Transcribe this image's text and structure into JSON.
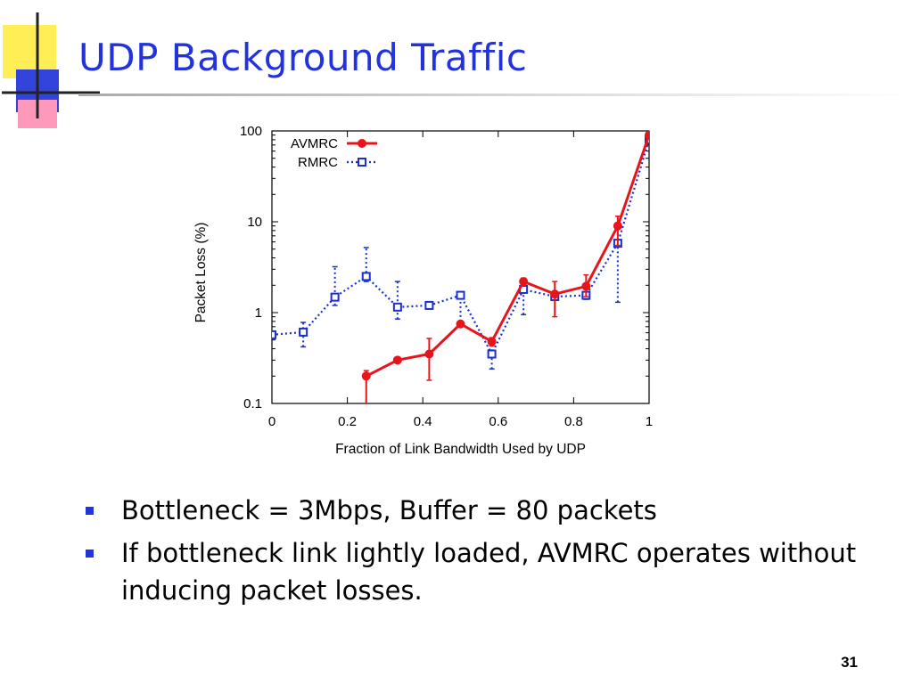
{
  "slide": {
    "title": "UDP Background Traffic",
    "bullets": [
      "Bottleneck = 3Mbps, Buffer = 80 packets",
      "If bottleneck link lightly loaded, AVMRC operates without inducing packet losses."
    ],
    "page_number": "31",
    "colors": {
      "title": "#2233dd",
      "bullet": "#2233dd",
      "deco_yellow": "#ffee55",
      "deco_blue": "#3344dd",
      "deco_pink": "#ff99bb"
    }
  },
  "chart_data": {
    "type": "line",
    "title": "",
    "xlabel": "Fraction of Link Bandwidth Used by UDP",
    "ylabel": "Packet Loss (%)",
    "xlim": [
      0,
      1
    ],
    "ylim": [
      0.1,
      100
    ],
    "yscale": "log",
    "xticks": [
      "0",
      "0.2",
      "0.4",
      "0.6",
      "0.8",
      "1"
    ],
    "yticks": [
      "0.1",
      "1",
      "10",
      "100"
    ],
    "legend_position": "top-left",
    "series": [
      {
        "name": "AVMRC",
        "color": "#e8141c",
        "style": "solid",
        "marker": "circle",
        "points": [
          {
            "x": 0.25,
            "y": 0.2,
            "err_low": 0.08,
            "err_high": 0.23
          },
          {
            "x": 0.333,
            "y": 0.3
          },
          {
            "x": 0.417,
            "y": 0.35,
            "err_low": 0.18,
            "err_high": 0.52
          },
          {
            "x": 0.5,
            "y": 0.75
          },
          {
            "x": 0.583,
            "y": 0.48,
            "err_low": 0.43,
            "err_high": 0.53
          },
          {
            "x": 0.667,
            "y": 2.2,
            "err_low": 2.0,
            "err_high": 2.4
          },
          {
            "x": 0.75,
            "y": 1.6,
            "err_low": 0.9,
            "err_high": 2.2
          },
          {
            "x": 0.833,
            "y": 1.95,
            "err_low": 1.5,
            "err_high": 2.6
          },
          {
            "x": 0.917,
            "y": 9.0,
            "err_low": 5.5,
            "err_high": 11.5
          },
          {
            "x": 1.0,
            "y": 90
          }
        ]
      },
      {
        "name": "RMRC",
        "color": "#1a2fd0",
        "style": "dotted",
        "marker": "square",
        "points": [
          {
            "x": 0.0,
            "y": 0.57
          },
          {
            "x": 0.083,
            "y": 0.61,
            "err_low": 0.42,
            "err_high": 0.78
          },
          {
            "x": 0.167,
            "y": 1.48,
            "err_low": 1.2,
            "err_high": 3.2
          },
          {
            "x": 0.25,
            "y": 2.5,
            "err_low": 2.2,
            "err_high": 5.2
          },
          {
            "x": 0.333,
            "y": 1.15,
            "err_low": 0.85,
            "err_high": 2.2
          },
          {
            "x": 0.417,
            "y": 1.2,
            "err_low": 1.1,
            "err_high": 1.3
          },
          {
            "x": 0.5,
            "y": 1.55,
            "err_low": 0.8,
            "err_high": 1.7
          },
          {
            "x": 0.583,
            "y": 0.35,
            "err_low": 0.24,
            "err_high": 0.45
          },
          {
            "x": 0.667,
            "y": 1.8,
            "err_low": 0.95,
            "err_high": 2.2
          },
          {
            "x": 0.75,
            "y": 1.5,
            "err_low": 1.4,
            "err_high": 1.6
          },
          {
            "x": 0.833,
            "y": 1.55,
            "err_low": 1.4,
            "err_high": 1.7
          },
          {
            "x": 0.917,
            "y": 5.8,
            "err_low": 1.3,
            "err_high": 8.5
          },
          {
            "x": 1.0,
            "y": 80
          }
        ]
      }
    ]
  }
}
